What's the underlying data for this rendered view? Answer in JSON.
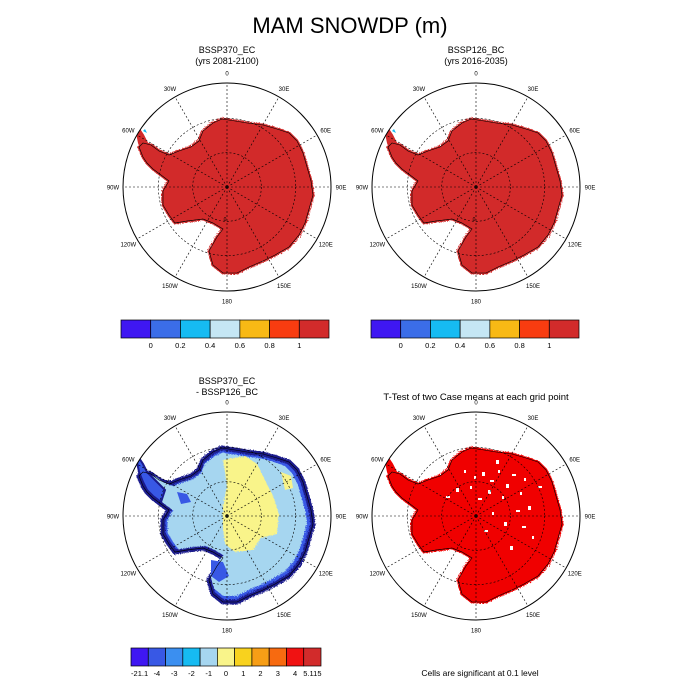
{
  "figure": {
    "title": "MAM SNOWDP (m)",
    "panels": [
      {
        "id": "p1",
        "title_line1": "BSSP370_EC",
        "title_line2": "(yrs 2081-2100)",
        "kind": "case"
      },
      {
        "id": "p2",
        "title_line1": "BSSP126_BC",
        "title_line2": "(yrs 2016-2035)",
        "kind": "case"
      },
      {
        "id": "p3",
        "title_line1": "BSSP370_EC",
        "title_line2": "- BSSP126_BC",
        "kind": "diff"
      },
      {
        "id": "p4",
        "title_line1": "T-Test of two Case means at each grid point",
        "title_line2": "",
        "kind": "ttest"
      }
    ],
    "lon_labels": [
      "0",
      "30E",
      "60E",
      "90E",
      "120E",
      "150E",
      "180",
      "150W",
      "120W",
      "90W",
      "60W",
      "30W"
    ],
    "colorbar_top": {
      "colors": [
        "#3f17f2",
        "#3b6de8",
        "#16bbf2",
        "#c5e6f4",
        "#f8b915",
        "#f83c10",
        "#d22b2b"
      ],
      "labels": [
        "0",
        "0.2",
        "0.4",
        "0.6",
        "0.8",
        "1"
      ]
    },
    "colorbar_diff": {
      "colors": [
        "#3f17f2",
        "#3858e5",
        "#3b8ff0",
        "#16bbf2",
        "#a6d6f0",
        "#f9f48a",
        "#f8d21e",
        "#f79e16",
        "#f76a10",
        "#f01212",
        "#d22b2b"
      ],
      "labels": [
        "-21.1",
        "-4",
        "-3",
        "-2",
        "-1",
        "0",
        "1",
        "2",
        "3",
        "4",
        "5.115"
      ]
    },
    "significance_note": "Cells are significant at 0.1 level",
    "colors": {
      "case_fill": "#d22b2b",
      "ttest_fill": "#f00000",
      "diff_base": "#a6d6f0",
      "diff_positive": "#f9f48a",
      "diff_negative": "#3858e5"
    }
  }
}
